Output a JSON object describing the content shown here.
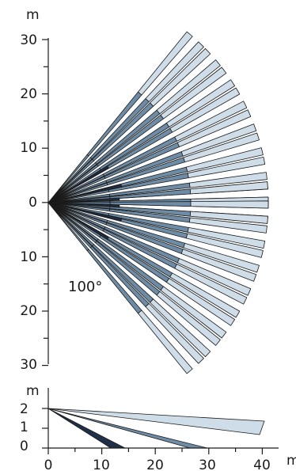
{
  "top_view": {
    "axis_unit": "m",
    "y_tick_labels": [
      "30",
      "20",
      "10",
      "0",
      "10",
      "20",
      "30"
    ],
    "angle_label": "100°"
  },
  "side_view": {
    "axis_unit": "m",
    "x_axis_unit": "m",
    "y_tick_labels": [
      "2",
      "1",
      "0"
    ],
    "x_tick_labels": [
      "0",
      "10",
      "20",
      "30",
      "40"
    ]
  },
  "colors": {
    "far": "#cfdde9",
    "mid": "#6e8ca6",
    "near": "#1f2f47",
    "outline": "#1a1a1a"
  }
}
